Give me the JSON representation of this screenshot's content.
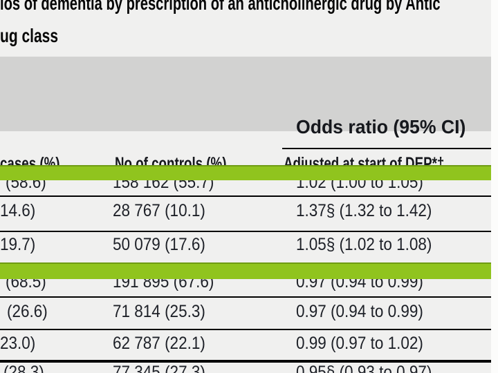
{
  "title": {
    "line1_fragment": "ios of dementia by prescription of an anticholinergic drug by Antic",
    "line2_fragment": "ug class"
  },
  "table": {
    "span_header": "Odds ratio (95% CI)",
    "col_headers": {
      "cases": "cases (%)",
      "controls": "No of controls (%)",
      "adjusted": "Adjusted at start of DEP*†"
    },
    "rows": [
      {
        "cases": "(58.6)",
        "controls": "158 162 (55.7)",
        "odds_ratio": "1.02 (1.00 to 1.05)"
      },
      {
        "cases": "14.6)",
        "controls": "28 767 (10.1)",
        "odds_ratio": "1.37§ (1.32 to 1.42)"
      },
      {
        "cases": "19.7)",
        "controls": "50 079 (17.6)",
        "odds_ratio": "1.05§ (1.02 to 1.08)"
      },
      {
        "cases": "(68.5)",
        "controls": "191 895 (67.6)",
        "odds_ratio": "0.97 (0.94 to 0.99)"
      },
      {
        "cases": "(26.6)",
        "controls": "71 814 (25.3)",
        "odds_ratio": "0.97 (0.94 to 0.99)"
      },
      {
        "cases": "23.0)",
        "controls": "62 787 (22.1)",
        "odds_ratio": "0.99 (0.97 to 1.02)"
      },
      {
        "cases": "(28.3)",
        "controls": "77 345 (27.3)",
        "odds_ratio": "0.95§ (0.93 to 0.97)"
      }
    ],
    "highlight_color": "#90c41e",
    "header_band_color": "#d2d2d1"
  }
}
